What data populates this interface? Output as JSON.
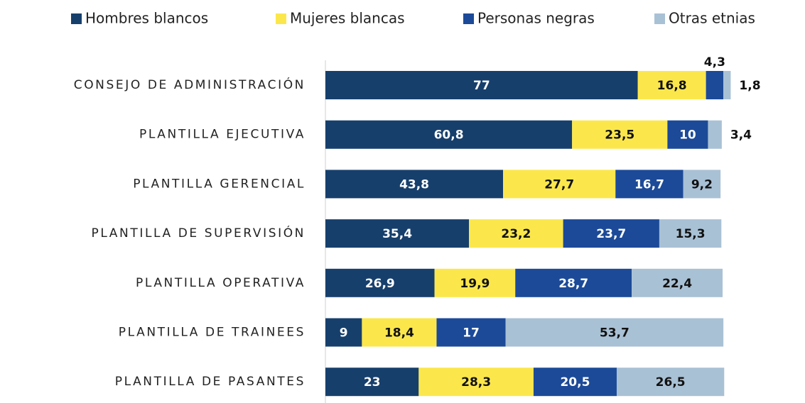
{
  "chart_data": {
    "type": "stacked_bar_horizontal",
    "categories": [
      "CONSEJO DE ADMINISTRACIÓN",
      "PLANTILLA EJECUTIVA",
      "PLANTILLA GERENCIAL",
      "PLANTILLA DE SUPERVISIÓN",
      "PLANTILLA OPERATIVA",
      "PLANTILLA DE TRAINEES",
      "PLANTILLA DE PASANTES"
    ],
    "xlim": [
      0,
      100
    ],
    "legend": "top",
    "series": [
      {
        "name": "Hombres blancos",
        "color": "#173f6c",
        "label_color": "#ffffff",
        "values": [
          77,
          60.8,
          43.8,
          35.4,
          26.9,
          9,
          23
        ],
        "value_labels": [
          "77",
          "60,8",
          "43,8",
          "35,4",
          "26,9",
          "9",
          "23"
        ]
      },
      {
        "name": "Mujeres blancas",
        "color": "#fbe74c",
        "label_color": "#111111",
        "values": [
          16.8,
          23.5,
          27.7,
          23.2,
          19.9,
          18.4,
          28.3
        ],
        "value_labels": [
          "16,8",
          "23,5",
          "27,7",
          "23,2",
          "19,9",
          "18,4",
          "28,3"
        ]
      },
      {
        "name": "Personas negras",
        "color": "#1c4a98",
        "label_color": "#ffffff",
        "values": [
          4.3,
          10,
          16.7,
          23.7,
          28.7,
          17,
          20.5
        ],
        "value_labels": [
          "4,3",
          "10",
          "16,7",
          "23,7",
          "28,7",
          "17",
          "20,5"
        ]
      },
      {
        "name": "Otras etnias",
        "color": "#a9c1d5",
        "label_color": "#111111",
        "values": [
          1.8,
          3.4,
          9.2,
          15.3,
          22.4,
          53.7,
          26.5
        ],
        "value_labels": [
          "1,8",
          "3,4",
          "9,2",
          "15,3",
          "22,4",
          "53,7",
          "26,5"
        ]
      }
    ]
  }
}
